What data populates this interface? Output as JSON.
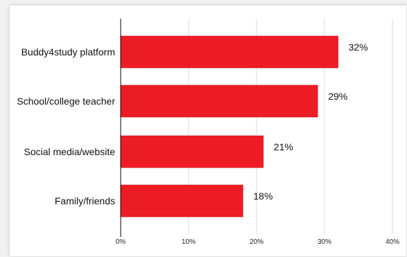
{
  "chart_data": {
    "type": "bar",
    "orientation": "horizontal",
    "categories": [
      "Buddy4study platform",
      "School/college teacher",
      "Social media/website",
      "Family/friends"
    ],
    "values": [
      32,
      29,
      21,
      18
    ],
    "value_labels": [
      "32%",
      "29%",
      "21%",
      "18%"
    ],
    "xlim": [
      0,
      40
    ],
    "ticks": [
      0,
      10,
      20,
      30,
      40
    ],
    "tick_labels": [
      "0%",
      "10%",
      "20%",
      "30%",
      "40%"
    ],
    "grid": "vertical",
    "legend": "none",
    "colors": {
      "bar": "#ee1c25",
      "bar_edge": "#c8141c",
      "grid": "#d9d9d9",
      "axis": "#000000"
    }
  }
}
